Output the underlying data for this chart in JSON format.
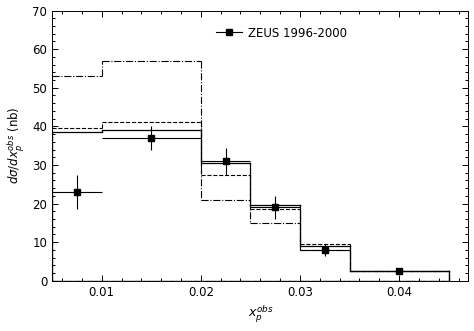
{
  "title": "ZEUS 1996-2000",
  "xlabel": "$x_p^{obs}$",
  "ylabel": "$d\\sigma/dx_p^{obs}$ (nb)",
  "xlim": [
    0.005,
    0.047
  ],
  "ylim": [
    0,
    70
  ],
  "yticks": [
    0,
    10,
    20,
    30,
    40,
    50,
    60,
    70
  ],
  "xticks": [
    0.01,
    0.02,
    0.03,
    0.04
  ],
  "xticklabels": [
    "0.01",
    "0.02",
    "0.03",
    "0.04"
  ],
  "data_x": [
    0.0075,
    0.015,
    0.0225,
    0.0275,
    0.0325,
    0.04
  ],
  "data_y": [
    23.0,
    37.0,
    31.0,
    19.0,
    8.0,
    2.5
  ],
  "data_xerr": [
    0.0025,
    0.005,
    0.0025,
    0.0025,
    0.0025,
    0.005
  ],
  "data_yerr_lo": [
    4.5,
    3.0,
    3.5,
    3.0,
    1.5,
    0.7
  ],
  "data_yerr_hi": [
    4.5,
    3.0,
    3.5,
    3.0,
    1.5,
    0.7
  ],
  "bin_edges": [
    0.005,
    0.01,
    0.02,
    0.025,
    0.03,
    0.035,
    0.045
  ],
  "hist_solid_vals": [
    38.5,
    39.0,
    30.5,
    19.5,
    9.0,
    2.5
  ],
  "hist_dashed_vals": [
    39.5,
    41.0,
    27.5,
    18.5,
    9.5,
    2.5
  ],
  "hist_dashdot_vals": [
    53.0,
    57.0,
    21.0,
    15.0,
    8.0,
    2.5
  ],
  "figsize": [
    4.74,
    3.31
  ],
  "dpi": 100
}
